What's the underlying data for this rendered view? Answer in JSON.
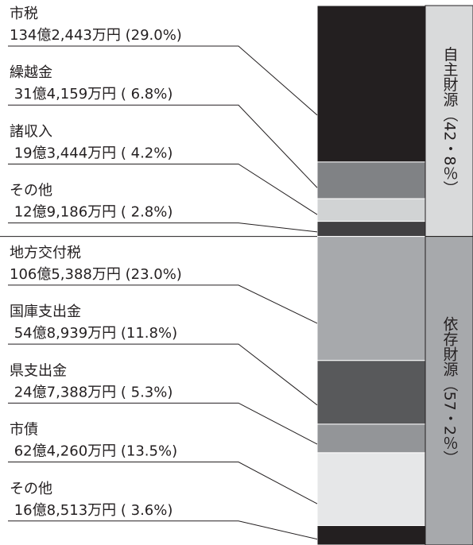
{
  "chart_data": {
    "type": "stacked-bar",
    "categories": [
      "市税",
      "繰越金",
      "諸収入",
      "その他",
      "地方交付税",
      "国庫支出金",
      "県支出金",
      "市債",
      "その他"
    ],
    "values": [
      29.0,
      6.8,
      4.2,
      2.8,
      23.0,
      11.8,
      5.3,
      13.5,
      3.6
    ],
    "value_labels": [
      "134億2,443万円 (29.0%)",
      " 31億4,159万円 ( 6.8%)",
      " 19億3,444万円 ( 4.2%)",
      " 12億9,186万円 ( 2.8%)",
      "106億5,388万円 (23.0%)",
      " 54億8,939万円 (11.8%)",
      " 24億7,388万円 ( 5.3%)",
      " 62億4,260万円 (13.5%)",
      " 16億8,513万円 ( 3.6%)"
    ],
    "colors": [
      "#231f20",
      "#808285",
      "#d1d3d4",
      "#414042",
      "#a7a9ac",
      "#58595b",
      "#939598",
      "#e6e7e8",
      "#231f20"
    ],
    "groups": [
      {
        "label": "自主財源（42・8％）",
        "value": 42.8,
        "color": "#d9dadb",
        "count": 4
      },
      {
        "label": "依存財源（57・2％）",
        "value": 57.2,
        "color": "#a7a9ac",
        "count": 5
      }
    ]
  }
}
